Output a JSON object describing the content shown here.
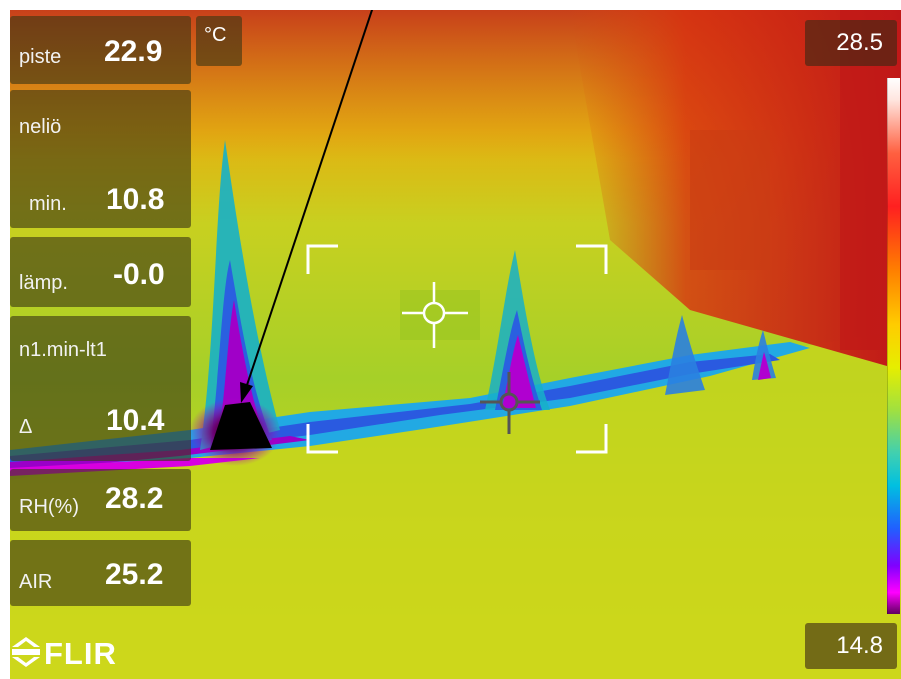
{
  "readouts": {
    "spot": {
      "label": "piste",
      "value": "22.9"
    },
    "area": {
      "label": "neliö"
    },
    "min": {
      "label": "min.",
      "value": "10.8"
    },
    "temp": {
      "label": "lämp.",
      "value": "-0.0"
    },
    "diff_name": {
      "label": "n1.min-lt1"
    },
    "delta": {
      "label": "Δ",
      "value": "10.4"
    },
    "rh": {
      "label": "RH(%)",
      "value": "28.2"
    },
    "air": {
      "label": "AIR",
      "value": "25.2"
    }
  },
  "unit": "°C",
  "scale": {
    "max": "28.5",
    "min": "14.8"
  },
  "brand": "FLIR",
  "colors": {
    "panel_bg": "#3c3714",
    "hot": "#d01a10",
    "warm": "#f0c000",
    "cool": "#9ed020",
    "cold": "#1070e0",
    "coldest": "#a000c8"
  },
  "icons": [
    "crosshair-icon",
    "crosshair-icon",
    "flir-logo-icon",
    "annotation-arrow"
  ]
}
